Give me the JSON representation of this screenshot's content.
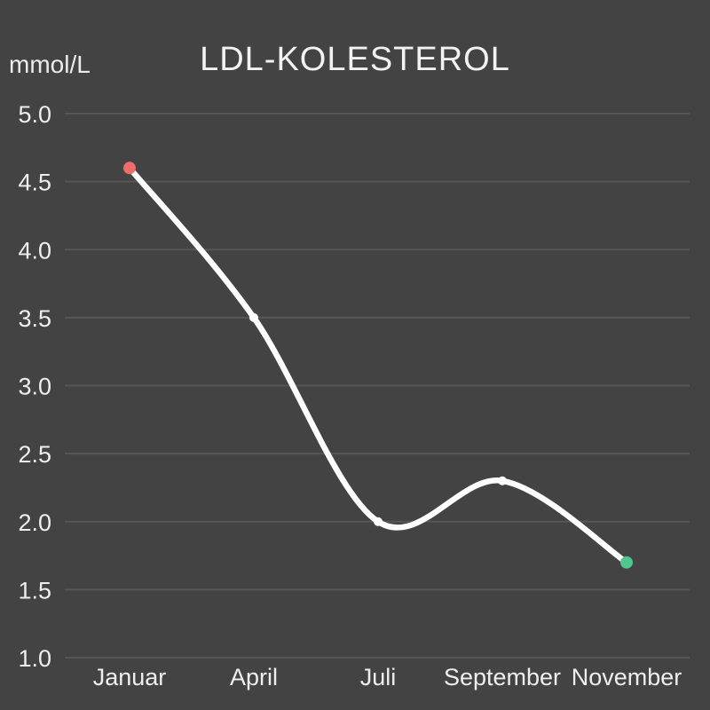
{
  "header": {
    "title": "LDL-KOLESTEROL",
    "unit_label": "mmol/L"
  },
  "chart_data": {
    "type": "line",
    "title": "LDL-KOLESTEROL",
    "ylabel": "mmol/L",
    "xlabel": "",
    "categories": [
      "Januar",
      "April",
      "Juli",
      "September",
      "November"
    ],
    "values": [
      4.6,
      3.5,
      2.0,
      2.3,
      1.7
    ],
    "ylim": [
      1.0,
      5.0
    ],
    "yticks": [
      "5.0",
      "4.5",
      "4.0",
      "3.5",
      "3.0",
      "2.5",
      "2.0",
      "1.5",
      "1.0"
    ],
    "grid": true,
    "legend": false,
    "smooth_curve": true,
    "colors": {
      "background": "#434343",
      "gridline": "#565656",
      "line": "#fdfdfd",
      "text": "#eeeeee",
      "first_point": "#ee6c6c",
      "mid_point": "#ffffff",
      "last_point": "#4fc68e"
    },
    "point_colors": [
      "#ee6c6c",
      "#ffffff",
      "#ffffff",
      "#ffffff",
      "#4fc68e"
    ]
  }
}
